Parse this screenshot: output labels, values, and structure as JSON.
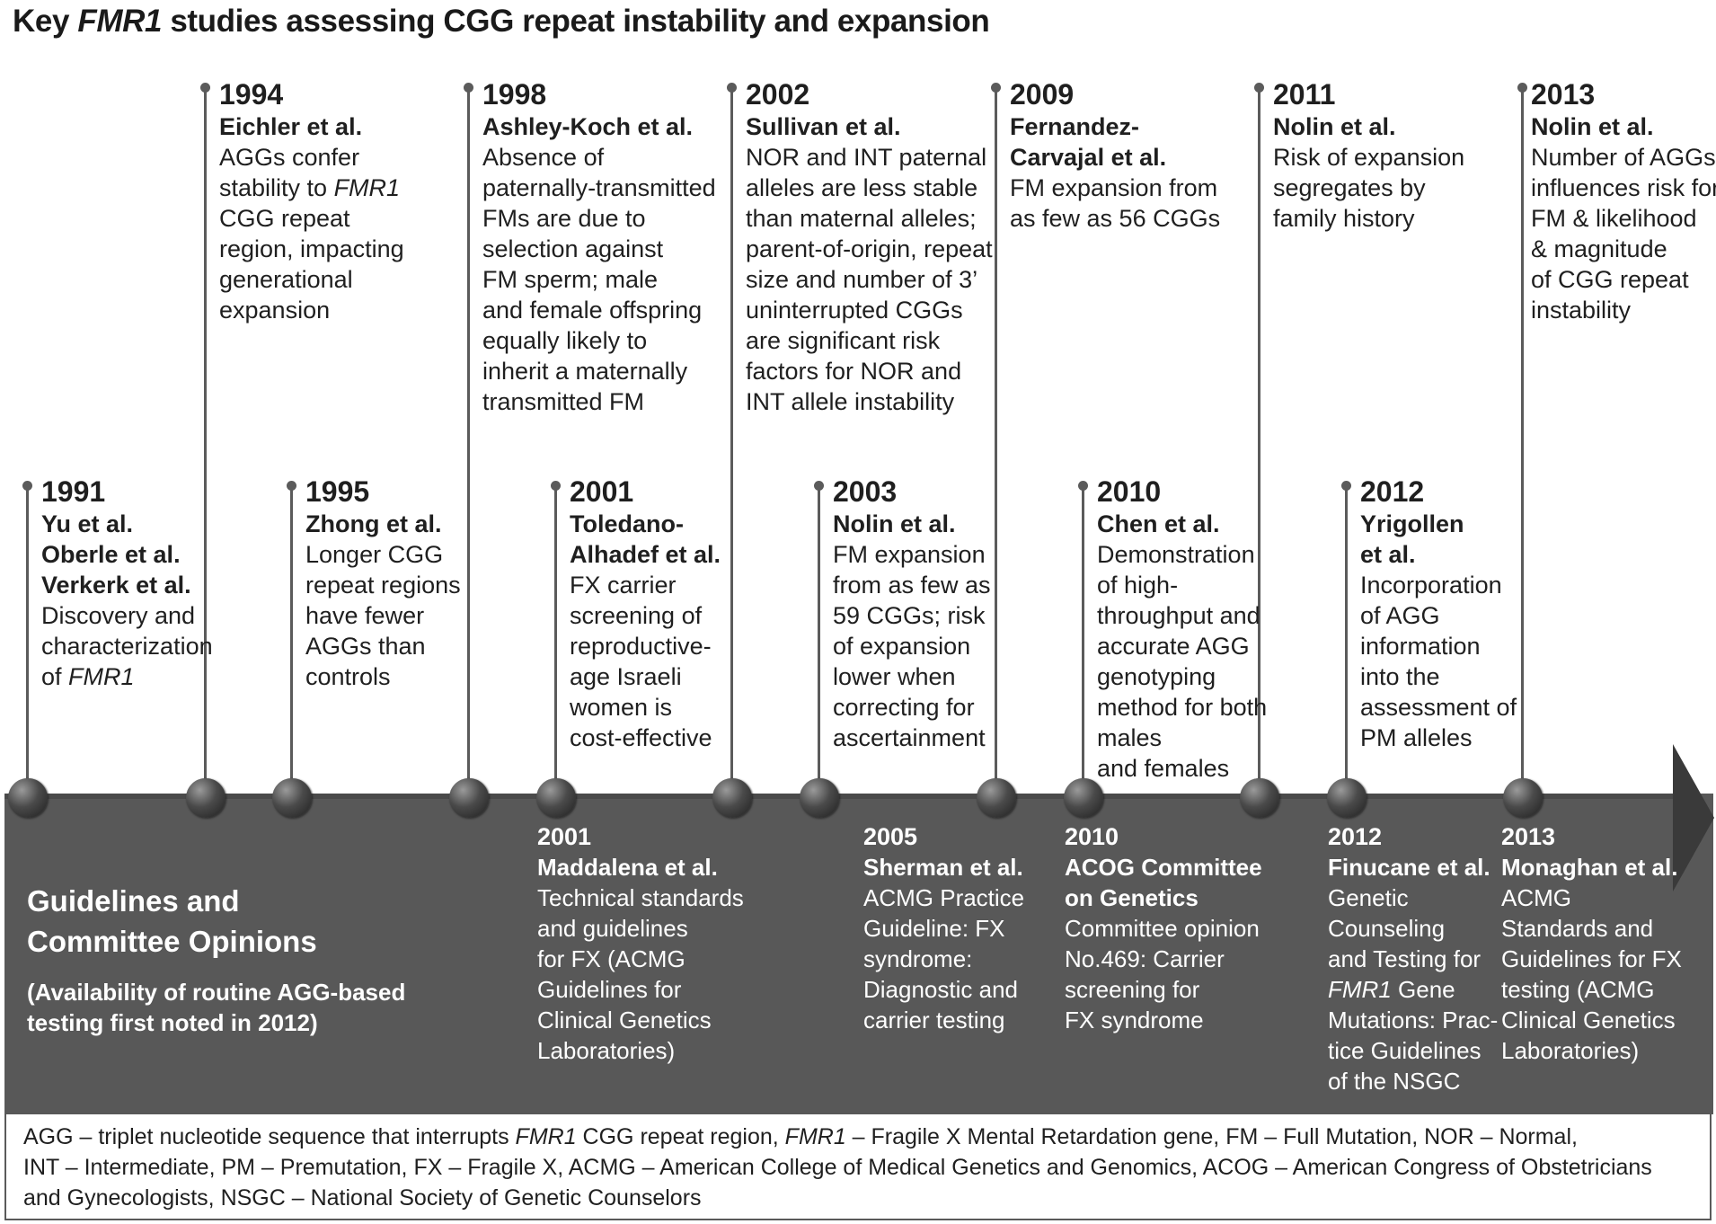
{
  "title": {
    "prefix": "Key ",
    "gene": "FMR1",
    "suffix": " studies assessing CGG repeat instability and expansion"
  },
  "events": [
    {
      "year": "1991",
      "authors": [
        "Yu et al.",
        "Oberle et al.",
        "Verkerk et al."
      ],
      "desc": [
        "Discovery and",
        "characterization",
        "of "
      ],
      "desc_gene": "FMR1"
    },
    {
      "year": "1994",
      "authors": [
        "Eichler et al."
      ],
      "desc": [
        "AGGs confer",
        "stability to ",
        "CGG repeat",
        "region, impacting",
        "generational",
        "expansion"
      ],
      "desc_gene": "FMR1"
    },
    {
      "year": "1995",
      "authors": [
        "Zhong et al."
      ],
      "desc": [
        "Longer CGG",
        "repeat regions",
        "have fewer",
        "AGGs than",
        "controls"
      ]
    },
    {
      "year": "1998",
      "authors": [
        "Ashley-Koch et al."
      ],
      "desc": [
        "Absence of",
        "paternally-transmitted",
        "FMs are due to",
        "selection against",
        "FM sperm; male",
        "and female offspring",
        "equally likely to",
        "inherit a maternally",
        "transmitted FM"
      ]
    },
    {
      "year": "2001",
      "authors": [
        "Toledano-",
        "Alhadef et al."
      ],
      "desc": [
        "FX carrier",
        "screening of",
        "reproductive-",
        "age Israeli",
        "women is",
        "cost-effective"
      ]
    },
    {
      "year": "2002",
      "authors": [
        "Sullivan et al."
      ],
      "desc": [
        "NOR and INT paternal",
        "alleles are less stable",
        "than maternal alleles;",
        "parent-of-origin, repeat",
        "size and number of 3’",
        "uninterrupted CGGs",
        "are significant risk",
        "factors for NOR and",
        "INT allele instability"
      ]
    },
    {
      "year": "2003",
      "authors": [
        "Nolin et al."
      ],
      "desc": [
        "FM expansion",
        "from as few as",
        "59 CGGs; risk",
        "of expansion",
        "lower when",
        "correcting for",
        "ascertainment"
      ]
    },
    {
      "year": "2009",
      "authors": [
        "Fernandez-",
        "Carvajal et al."
      ],
      "desc": [
        "FM expansion from",
        "as few as 56 CGGs"
      ]
    },
    {
      "year": "2010",
      "authors": [
        "Chen et al."
      ],
      "desc": [
        "Demonstration",
        "of high-",
        "throughput and",
        "accurate AGG",
        "genotyping",
        "method for both",
        "males",
        "and females"
      ]
    },
    {
      "year": "2011",
      "authors": [
        "Nolin et al."
      ],
      "desc": [
        "Risk of expansion",
        "segregates by",
        "family history"
      ]
    },
    {
      "year": "2012",
      "authors": [
        "Yrigollen",
        "et al."
      ],
      "desc": [
        "Incorporation",
        "of AGG",
        "information",
        "into the",
        "assessment of",
        "PM alleles"
      ]
    },
    {
      "year": "2013",
      "authors": [
        "Nolin et al."
      ],
      "desc": [
        "Number of AGGs",
        "influences risk for",
        "FM & likelihood",
        "& magnitude",
        "of CGG repeat",
        "instability"
      ]
    }
  ],
  "guidelines_title": [
    "Guidelines and",
    "Committee Opinions"
  ],
  "guidelines_note": [
    "(Availability of routine AGG-based",
    " testing first noted in 2012)"
  ],
  "guidelines": [
    {
      "year": "2001",
      "authors": [
        "Maddalena et al."
      ],
      "desc": [
        "Technical standards",
        "and guidelines",
        "for FX (ACMG",
        "Guidelines for",
        "Clinical Genetics",
        "Laboratories)"
      ]
    },
    {
      "year": "2005",
      "authors": [
        "Sherman et al."
      ],
      "desc": [
        "ACMG Practice",
        "Guideline: FX",
        "syndrome:",
        "Diagnostic and",
        "carrier testing"
      ]
    },
    {
      "year": "2010",
      "authors": [
        "ACOG Committee",
        "on Genetics"
      ],
      "desc": [
        "Committee opinion",
        "No.469: Carrier",
        "screening for",
        "FX syndrome"
      ]
    },
    {
      "year": "2012",
      "authors": [
        "Finucane et al."
      ],
      "desc": [
        "Genetic",
        "Counseling",
        "and Testing for",
        " Gene",
        "Mutations: Prac-",
        "tice Guidelines",
        "of the NSGC"
      ],
      "desc_gene": "FMR1"
    },
    {
      "year": "2013",
      "authors": [
        "Monaghan et al."
      ],
      "desc": [
        "ACMG",
        "Standards and",
        "Guidelines for FX",
        "testing (ACMG",
        "Clinical Genetics",
        "Laboratories)"
      ]
    }
  ],
  "legend": {
    "l1a": "AGG – triplet nucleotide sequence that interrupts ",
    "l1b": "FMR1",
    "l1c": " CGG repeat region, ",
    "l1d": "FMR1",
    "l1e": " – Fragile X Mental Retardation gene, FM – Full Mutation, NOR – Normal,",
    "l2": "INT – Intermediate, PM – Premutation, FX – Fragile X, ACMG – American College of Medical Genetics and Genomics, ACOG – American Congress of Obstetricians",
    "l3": "and Gynecologists, NSGC – National Society of Genetic Counselors"
  }
}
